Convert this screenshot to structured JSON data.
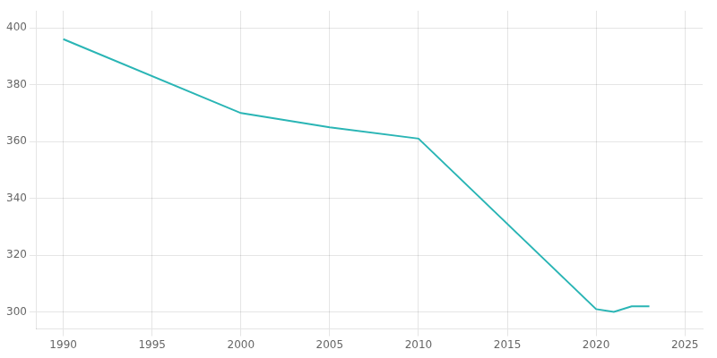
{
  "chart_data": {
    "type": "line",
    "x": [
      1990,
      2000,
      2005,
      2010,
      2020,
      2021,
      2022,
      2023
    ],
    "values": [
      396,
      370,
      365,
      361,
      301,
      300,
      302,
      302
    ],
    "color": "#2ab5b5",
    "xlim": [
      1988.5,
      2026
    ],
    "ylim": [
      294,
      406
    ],
    "xticks": [
      1990,
      1995,
      2000,
      2005,
      2010,
      2015,
      2020,
      2025
    ],
    "yticks": [
      300,
      320,
      340,
      360,
      380,
      400
    ],
    "grid": true
  }
}
